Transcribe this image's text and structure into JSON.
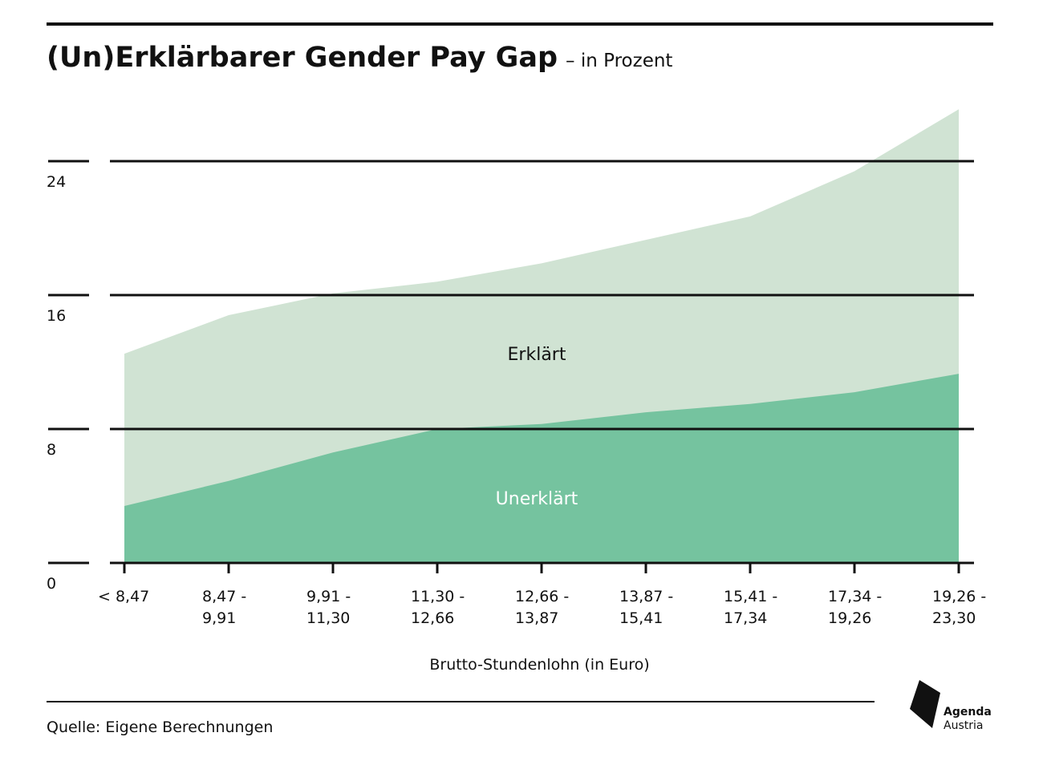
{
  "header": {
    "title": "(Un)Erklärbarer Gender Pay Gap",
    "subtitle": "– in Prozent"
  },
  "footer": {
    "source": "Quelle: Eigene Berechnungen"
  },
  "logo": {
    "line1": "Agenda",
    "line2": "Austria"
  },
  "colors": {
    "explained": "#d0e3d3",
    "unexplained": "#75c39f",
    "grid": "#111111"
  },
  "chart_data": {
    "type": "area",
    "stacked": true,
    "categories": [
      "< 8,47",
      "8,47 - 9,91",
      "9,91 - 11,30",
      "11,30 - 12,66",
      "12,66 - 13,87",
      "13,87 - 15,41",
      "15,41 - 17,34",
      "17,34 - 19,26",
      "19,26 - 23,30"
    ],
    "category_lines": [
      [
        "< 8,47"
      ],
      [
        "8,47 -",
        "9,91"
      ],
      [
        "9,91 -",
        "11,30"
      ],
      [
        "11,30 -",
        "12,66"
      ],
      [
        "12,66 -",
        "13,87"
      ],
      [
        "13,87 -",
        "15,41"
      ],
      [
        "15,41 -",
        "17,34"
      ],
      [
        "17,34 -",
        "19,26"
      ],
      [
        "19,26 -",
        "23,30"
      ]
    ],
    "series": [
      {
        "name": "Unerklärt",
        "values": [
          3.4,
          4.9,
          6.6,
          8.0,
          8.3,
          9.0,
          9.5,
          10.2,
          11.3
        ]
      },
      {
        "name": "Erklärt",
        "values": [
          9.1,
          9.9,
          9.5,
          8.8,
          9.6,
          10.3,
          11.2,
          13.2,
          15.8
        ]
      }
    ],
    "series_labels": [
      "Unerklärt",
      "Erklärt"
    ],
    "title": "(Un)Erklärbarer Gender Pay Gap",
    "xlabel": "Brutto-Stundenlohn (in Euro)",
    "ylabel": "",
    "yticks": [
      0,
      8,
      16,
      24
    ],
    "ylim": [
      0,
      27.2
    ],
    "grid": true
  }
}
